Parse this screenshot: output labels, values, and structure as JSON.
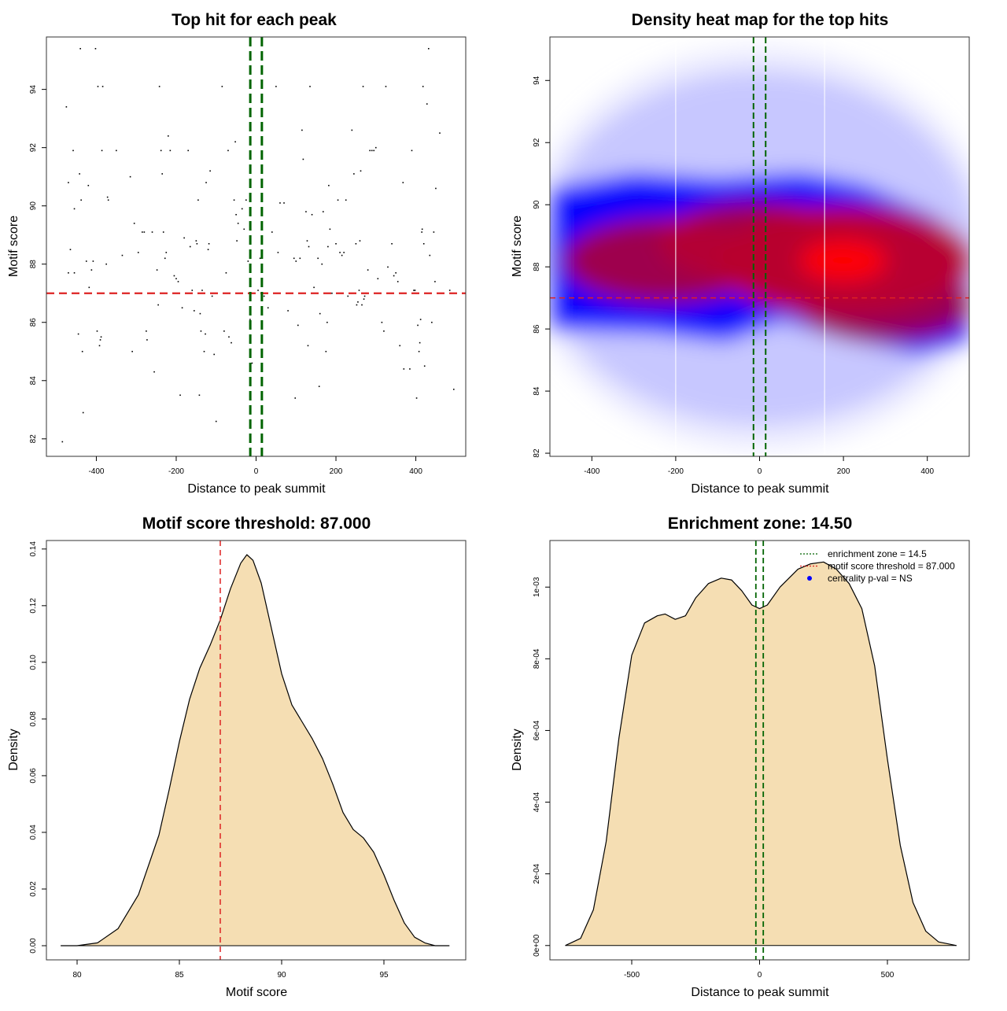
{
  "chart_data": [
    {
      "id": "scatter",
      "type": "scatter",
      "title": "Top hit for each peak",
      "xlabel": "Distance to peak summit",
      "ylabel": "Motif score",
      "xlim": [
        -525,
        525
      ],
      "ylim": [
        81.4,
        95.8
      ],
      "xticks": [
        -400,
        -200,
        0,
        200,
        400
      ],
      "yticks": [
        82,
        84,
        86,
        88,
        90,
        92,
        94
      ],
      "vlines": [
        -14.5,
        14.5
      ],
      "hline": 87.0,
      "vline_color": "#006400",
      "hline_color": "#dd2222",
      "points": [
        [
          -485,
          81.9
        ],
        [
          -475,
          93.4
        ],
        [
          -470,
          90.8
        ],
        [
          -465,
          88.5
        ],
        [
          -458,
          91.9
        ],
        [
          -455,
          89.9
        ],
        [
          -470,
          87.7
        ],
        [
          -455,
          87.7
        ],
        [
          -445,
          85.6
        ],
        [
          -442,
          91.1
        ],
        [
          -440,
          95.4
        ],
        [
          -438,
          90.2
        ],
        [
          -435,
          85.0
        ],
        [
          -433,
          82.9
        ],
        [
          -425,
          88.1
        ],
        [
          -420,
          90.7
        ],
        [
          -418,
          87.2
        ],
        [
          -412,
          87.8
        ],
        [
          -408,
          88.1
        ],
        [
          -402,
          95.4
        ],
        [
          -398,
          85.7
        ],
        [
          -396,
          94.1
        ],
        [
          -392,
          85.2
        ],
        [
          -390,
          85.4
        ],
        [
          -388,
          85.5
        ],
        [
          -386,
          91.9
        ],
        [
          -384,
          94.1
        ],
        [
          -375,
          88.0
        ],
        [
          -372,
          90.3
        ],
        [
          -370,
          90.2
        ],
        [
          -350,
          91.9
        ],
        [
          -335,
          88.3
        ],
        [
          -315,
          91.0
        ],
        [
          -310,
          85.0
        ],
        [
          -305,
          89.4
        ],
        [
          -295,
          88.4
        ],
        [
          -285,
          89.1
        ],
        [
          -280,
          89.1
        ],
        [
          -275,
          85.7
        ],
        [
          -273,
          85.4
        ],
        [
          -260,
          89.1
        ],
        [
          -255,
          84.3
        ],
        [
          -248,
          87.8
        ],
        [
          -245,
          86.6
        ],
        [
          -242,
          94.1
        ],
        [
          -238,
          91.9
        ],
        [
          -235,
          91.1
        ],
        [
          -232,
          89.1
        ],
        [
          -228,
          88.2
        ],
        [
          -225,
          88.4
        ],
        [
          -220,
          92.4
        ],
        [
          -215,
          91.9
        ],
        [
          -205,
          87.6
        ],
        [
          -200,
          87.5
        ],
        [
          -195,
          87.4
        ],
        [
          -190,
          83.5
        ],
        [
          -185,
          86.5
        ],
        [
          -180,
          88.9
        ],
        [
          -175,
          87.0
        ],
        [
          -170,
          91.9
        ],
        [
          -165,
          88.6
        ],
        [
          -160,
          87.1
        ],
        [
          -155,
          86.4
        ],
        [
          -150,
          88.8
        ],
        [
          -148,
          88.7
        ],
        [
          -145,
          90.2
        ],
        [
          -142,
          83.5
        ],
        [
          -140,
          86.3
        ],
        [
          -138,
          85.7
        ],
        [
          -135,
          87.1
        ],
        [
          -130,
          85.0
        ],
        [
          -127,
          85.6
        ],
        [
          -125,
          90.8
        ],
        [
          -120,
          88.5
        ],
        [
          -118,
          88.7
        ],
        [
          -115,
          91.2
        ],
        [
          -110,
          86.9
        ],
        [
          -105,
          84.9
        ],
        [
          -100,
          82.6
        ],
        [
          -85,
          94.1
        ],
        [
          -80,
          85.7
        ],
        [
          -75,
          87.7
        ],
        [
          -70,
          91.9
        ],
        [
          -68,
          85.5
        ],
        [
          -62,
          85.3
        ],
        [
          -55,
          90.2
        ],
        [
          -52,
          92.2
        ],
        [
          -50,
          89.7
        ],
        [
          -48,
          88.8
        ],
        [
          -45,
          89.4
        ],
        [
          -35,
          89.9
        ],
        [
          -30,
          89.2
        ],
        [
          -25,
          90.2
        ],
        [
          -20,
          88.1
        ],
        [
          -15,
          86.1
        ],
        [
          -10,
          84.6
        ],
        [
          5,
          87.1
        ],
        [
          10,
          88.2
        ],
        [
          15,
          87.0
        ],
        [
          20,
          86.9
        ],
        [
          30,
          86.5
        ],
        [
          40,
          89.1
        ],
        [
          50,
          94.1
        ],
        [
          55,
          88.4
        ],
        [
          60,
          90.1
        ],
        [
          70,
          90.1
        ],
        [
          80,
          86.4
        ],
        [
          95,
          88.2
        ],
        [
          98,
          83.4
        ],
        [
          100,
          88.1
        ],
        [
          105,
          85.9
        ],
        [
          110,
          88.2
        ],
        [
          115,
          92.6
        ],
        [
          118,
          91.6
        ],
        [
          125,
          89.8
        ],
        [
          128,
          88.8
        ],
        [
          130,
          85.2
        ],
        [
          132,
          88.6
        ],
        [
          135,
          94.1
        ],
        [
          140,
          89.7
        ],
        [
          145,
          87.2
        ],
        [
          155,
          88.2
        ],
        [
          158,
          83.8
        ],
        [
          160,
          86.3
        ],
        [
          165,
          88.0
        ],
        [
          168,
          89.8
        ],
        [
          175,
          85.0
        ],
        [
          178,
          86.0
        ],
        [
          180,
          88.6
        ],
        [
          182,
          90.7
        ],
        [
          185,
          89.2
        ],
        [
          190,
          87.0
        ],
        [
          200,
          88.7
        ],
        [
          205,
          90.2
        ],
        [
          210,
          88.4
        ],
        [
          215,
          88.3
        ],
        [
          220,
          88.4
        ],
        [
          225,
          90.2
        ],
        [
          230,
          86.9
        ],
        [
          240,
          92.6
        ],
        [
          245,
          91.1
        ],
        [
          250,
          88.7
        ],
        [
          252,
          86.6
        ],
        [
          255,
          86.7
        ],
        [
          258,
          87.1
        ],
        [
          260,
          88.8
        ],
        [
          262,
          91.2
        ],
        [
          265,
          86.6
        ],
        [
          268,
          94.1
        ],
        [
          270,
          86.8
        ],
        [
          272,
          86.9
        ],
        [
          275,
          87.0
        ],
        [
          280,
          87.8
        ],
        [
          285,
          91.9
        ],
        [
          290,
          91.9
        ],
        [
          295,
          91.9
        ],
        [
          300,
          92.0
        ],
        [
          305,
          87.5
        ],
        [
          315,
          86.0
        ],
        [
          320,
          85.7
        ],
        [
          325,
          94.1
        ],
        [
          330,
          87.9
        ],
        [
          340,
          88.7
        ],
        [
          345,
          87.6
        ],
        [
          350,
          87.7
        ],
        [
          355,
          87.4
        ],
        [
          360,
          85.2
        ],
        [
          368,
          90.8
        ],
        [
          370,
          84.4
        ],
        [
          385,
          84.4
        ],
        [
          390,
          91.9
        ],
        [
          395,
          87.1
        ],
        [
          398,
          87.1
        ],
        [
          402,
          83.4
        ],
        [
          405,
          85.9
        ],
        [
          408,
          85.0
        ],
        [
          410,
          85.3
        ],
        [
          412,
          86.1
        ],
        [
          415,
          89.1
        ],
        [
          416,
          89.2
        ],
        [
          418,
          94.1
        ],
        [
          420,
          88.7
        ],
        [
          422,
          84.5
        ],
        [
          425,
          87.0
        ],
        [
          428,
          93.5
        ],
        [
          432,
          95.4
        ],
        [
          435,
          88.3
        ],
        [
          440,
          86.0
        ],
        [
          445,
          89.1
        ],
        [
          448,
          87.4
        ],
        [
          450,
          90.6
        ],
        [
          460,
          92.5
        ],
        [
          485,
          87.1
        ],
        [
          495,
          83.7
        ]
      ]
    },
    {
      "id": "heatmap",
      "type": "heatmap",
      "title": "Density heat map for the top hits",
      "xlabel": "Distance to peak summit",
      "ylabel": "Motif score",
      "xlim": [
        -500,
        500
      ],
      "ylim": [
        81.9,
        95.4
      ],
      "xticks": [
        -400,
        -200,
        0,
        200,
        400
      ],
      "yticks": [
        82,
        84,
        86,
        88,
        90,
        92,
        94
      ],
      "vlines": [
        -14.5,
        14.5
      ],
      "hline": 87.0,
      "white_lines": [
        -200,
        155
      ],
      "vline_color": "#006400",
      "hline_color": "#dd2222",
      "density_peaks": [
        {
          "x": 200,
          "y": 88.2,
          "weight": 1.0
        },
        {
          "x": -230,
          "y": 88.2,
          "weight": 0.6
        },
        {
          "x": -10,
          "y": 88.8,
          "weight": 0.55
        },
        {
          "x": 300,
          "y": 86.8,
          "weight": 0.45
        }
      ]
    },
    {
      "id": "score-density",
      "type": "area",
      "title": "Motif score threshold: 87.000",
      "xlabel": "Motif score",
      "ylabel": "Density",
      "xlim": [
        78.5,
        99.0
      ],
      "ylim": [
        -0.005,
        0.143
      ],
      "xticks": [
        80,
        85,
        90,
        95
      ],
      "yticks": [
        "0.00",
        "0.02",
        "0.04",
        "0.06",
        "0.08",
        "0.10",
        "0.12",
        "0.14"
      ],
      "threshold": 87.0,
      "fill": "#f5deb3",
      "points": [
        [
          79.2,
          0.0
        ],
        [
          80.0,
          0.0
        ],
        [
          81.0,
          0.001
        ],
        [
          82.0,
          0.006
        ],
        [
          83.0,
          0.018
        ],
        [
          84.0,
          0.039
        ],
        [
          84.5,
          0.055
        ],
        [
          85.0,
          0.072
        ],
        [
          85.5,
          0.087
        ],
        [
          86.0,
          0.098
        ],
        [
          86.5,
          0.106
        ],
        [
          87.0,
          0.115
        ],
        [
          87.5,
          0.126
        ],
        [
          88.0,
          0.135
        ],
        [
          88.3,
          0.138
        ],
        [
          88.6,
          0.136
        ],
        [
          89.0,
          0.128
        ],
        [
          89.5,
          0.112
        ],
        [
          90.0,
          0.096
        ],
        [
          90.5,
          0.085
        ],
        [
          91.0,
          0.079
        ],
        [
          91.5,
          0.073
        ],
        [
          92.0,
          0.066
        ],
        [
          92.5,
          0.057
        ],
        [
          93.0,
          0.047
        ],
        [
          93.5,
          0.041
        ],
        [
          94.0,
          0.038
        ],
        [
          94.5,
          0.033
        ],
        [
          95.0,
          0.025
        ],
        [
          95.5,
          0.016
        ],
        [
          96.0,
          0.008
        ],
        [
          96.5,
          0.003
        ],
        [
          97.0,
          0.001
        ],
        [
          97.5,
          0.0
        ],
        [
          98.2,
          0.0
        ]
      ]
    },
    {
      "id": "distance-density",
      "type": "area",
      "title": "Enrichment zone: 14.50",
      "xlabel": "Distance to peak summit",
      "ylabel": "Density",
      "xlim": [
        -820,
        820
      ],
      "ylim": [
        -4e-05,
        0.00113
      ],
      "xticks": [
        -500,
        0,
        500
      ],
      "yticks": [
        "0e+00",
        "2e-04",
        "4e-04",
        "6e-04",
        "8e-04",
        "1e-03"
      ],
      "vlines": [
        -14.5,
        14.5
      ],
      "fill": "#f5deb3",
      "legend": [
        {
          "label": "enrichment zone = 14.5",
          "color": "#006400",
          "style": "dotted"
        },
        {
          "label": "motif score threshold = 87.000",
          "color": "#dd2222",
          "style": "dotted"
        },
        {
          "label": "centrality p-val = NS",
          "color": "#0000ff",
          "style": "dot"
        }
      ],
      "points": [
        [
          -760,
          0.0
        ],
        [
          -700,
          2e-05
        ],
        [
          -650,
          0.0001
        ],
        [
          -600,
          0.00029
        ],
        [
          -550,
          0.00058
        ],
        [
          -500,
          0.00081
        ],
        [
          -450,
          0.0009
        ],
        [
          -400,
          0.00092
        ],
        [
          -370,
          0.000925
        ],
        [
          -330,
          0.00091
        ],
        [
          -290,
          0.00092
        ],
        [
          -250,
          0.00097
        ],
        [
          -200,
          0.00101
        ],
        [
          -150,
          0.001025
        ],
        [
          -110,
          0.00102
        ],
        [
          -70,
          0.00099
        ],
        [
          -30,
          0.00095
        ],
        [
          0,
          0.00094
        ],
        [
          30,
          0.00095
        ],
        [
          80,
          0.001
        ],
        [
          150,
          0.00105
        ],
        [
          200,
          0.001065
        ],
        [
          250,
          0.00107
        ],
        [
          300,
          0.00105
        ],
        [
          350,
          0.00101
        ],
        [
          400,
          0.00094
        ],
        [
          450,
          0.00078
        ],
        [
          500,
          0.00052
        ],
        [
          550,
          0.00028
        ],
        [
          600,
          0.00012
        ],
        [
          650,
          4e-05
        ],
        [
          700,
          1e-05
        ],
        [
          770,
          0.0
        ]
      ]
    }
  ]
}
